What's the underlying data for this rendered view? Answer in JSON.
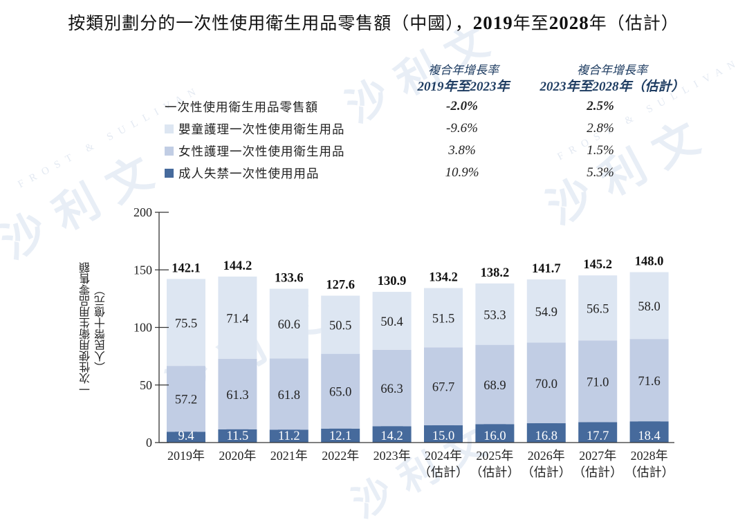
{
  "title": {
    "prefix": "按類別劃分的一次性使用衛生用品零售額（中國），",
    "year_start": "2019",
    "mid": "年至",
    "year_end": "2028",
    "suffix": "年（估計）"
  },
  "watermark": {
    "cn": "沙 利 文",
    "en": "FROST & SULLIVAN"
  },
  "cagr_table": {
    "columns": [
      {
        "line1": "複合年增長率",
        "line2": "2019年至2023年"
      },
      {
        "line1": "複合年增長率",
        "line2": "2023年至2028年（估計）"
      }
    ],
    "rows": [
      {
        "label": "一次性使用衛生用品零售額",
        "swatch": null,
        "values": [
          "-2.0%",
          "2.5%"
        ],
        "bold": true
      },
      {
        "label": "嬰童護理一次性使用衛生用品",
        "swatch": "#dde6f2",
        "values": [
          "-9.6%",
          "2.8%"
        ],
        "bold": false
      },
      {
        "label": "女性護理一次性使用衛生用品",
        "swatch": "#c1cde4",
        "values": [
          "3.8%",
          "1.5%"
        ],
        "bold": false
      },
      {
        "label": "成人失禁一次性使用用品",
        "swatch": "#466a9c",
        "values": [
          "10.9%",
          "5.3%"
        ],
        "bold": false
      }
    ]
  },
  "chart_data": {
    "type": "bar",
    "stacked": true,
    "title": "按類別劃分的一次性使用衛生用品零售額（中國），2019年至2028年（估計）",
    "xlabel": "",
    "ylabel": "一次性使用衛生用品零售額（人民幣十億元）",
    "ylabel_line1": "一次性使用衛生用品零售額",
    "ylabel_line2": "（人民幣十億元）",
    "ylim": [
      0,
      200
    ],
    "yticks": [
      0,
      50,
      100,
      150,
      200
    ],
    "grid": false,
    "categories": [
      "2019年",
      "2020年",
      "2021年",
      "2022年",
      "2023年",
      "2024年",
      "2025年",
      "2026年",
      "2027年",
      "2028年"
    ],
    "category_sublabels": [
      "",
      "",
      "",
      "",
      "",
      "（估計）",
      "（估計）",
      "（估計）",
      "（估計）",
      "（估計）"
    ],
    "series": [
      {
        "name": "成人失禁一次性使用用品",
        "color": "#466a9c",
        "label_color": "#ffffff",
        "values": [
          9.4,
          11.5,
          11.2,
          12.1,
          14.2,
          15.0,
          16.0,
          16.8,
          17.7,
          18.4
        ]
      },
      {
        "name": "女性護理一次性使用衛生用品",
        "color": "#c1cde4",
        "label_color": "#222222",
        "values": [
          57.2,
          61.3,
          61.8,
          65.0,
          66.3,
          67.7,
          68.9,
          70.0,
          71.0,
          71.6
        ]
      },
      {
        "name": "嬰童護理一次性使用衛生用品",
        "color": "#dde6f2",
        "label_color": "#222222",
        "values": [
          75.5,
          71.4,
          60.6,
          50.5,
          50.4,
          51.5,
          53.3,
          54.9,
          56.5,
          58.0
        ]
      }
    ],
    "totals": [
      142.1,
      144.2,
      133.6,
      127.6,
      130.9,
      134.2,
      138.2,
      141.7,
      145.2,
      148.0
    ],
    "legend_position": "top"
  }
}
